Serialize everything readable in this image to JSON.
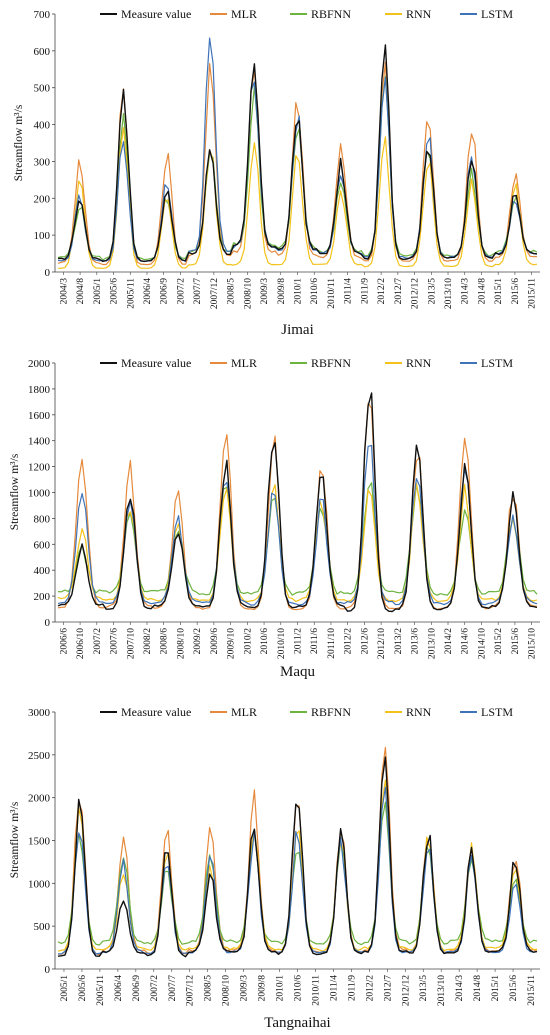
{
  "chart_data": [
    {
      "type": "line",
      "station": "Jimai",
      "ylabel": "Streamflow m³/s",
      "ylim": [
        0,
        700
      ],
      "yticks": [
        0,
        100,
        200,
        300,
        400,
        500,
        600,
        700
      ],
      "x_tick_labels": [
        "2004/3",
        "2004/8",
        "2005/1",
        "2005/6",
        "2005/11",
        "2006/4",
        "2006/9",
        "2007/2",
        "2007/7",
        "2007/12",
        "2008/5",
        "2008/10",
        "2009/3",
        "2009/8",
        "2010/1",
        "2010/6",
        "2010/11",
        "2011/4",
        "2011/9",
        "2012/2",
        "2012/7",
        "2012/12",
        "2013/5",
        "2013/10",
        "2014/3",
        "2014/8",
        "2015/1",
        "2015/6",
        "2015/11"
      ],
      "legend": [
        "Measure value",
        "MLR",
        "RBFNN",
        "RNN",
        "LSTM"
      ],
      "series": [
        {
          "name": "Measure value",
          "color": "#111111",
          "peaks": [
            200,
            510,
            230,
            340,
            560,
            430,
            290,
            600,
            360,
            310,
            210
          ],
          "base": [
            35,
            30,
            30,
            50,
            70,
            60,
            50,
            35,
            40,
            40,
            50,
            45
          ]
        },
        {
          "name": "MLR",
          "color": "#e58a3c",
          "peaks": [
            300,
            510,
            320,
            580,
            570,
            470,
            350,
            550,
            430,
            400,
            265
          ],
          "base": [
            25,
            20,
            20,
            45,
            55,
            45,
            40,
            30,
            30,
            30,
            40,
            35
          ]
        },
        {
          "name": "RBFNN",
          "color": "#6cb33f",
          "peaks": [
            180,
            440,
            200,
            330,
            480,
            400,
            260,
            510,
            330,
            270,
            200
          ],
          "base": [
            40,
            35,
            35,
            55,
            75,
            65,
            55,
            45,
            45,
            45,
            55,
            50
          ]
        },
        {
          "name": "RNN",
          "color": "#f3c21b",
          "peaks": [
            250,
            400,
            200,
            340,
            350,
            330,
            220,
            350,
            310,
            250,
            230
          ],
          "base": [
            10,
            10,
            10,
            20,
            20,
            20,
            20,
            15,
            15,
            15,
            20,
            15
          ]
        },
        {
          "name": "LSTM",
          "color": "#3f73b8",
          "peaks": [
            200,
            360,
            250,
            650,
            540,
            430,
            280,
            500,
            370,
            320,
            200
          ],
          "base": [
            30,
            30,
            30,
            55,
            70,
            60,
            50,
            40,
            40,
            40,
            50,
            45
          ]
        }
      ]
    },
    {
      "type": "line",
      "station": "Maqu",
      "ylabel": "Streamflow m³/s",
      "ylim": [
        0,
        2000
      ],
      "yticks": [
        0,
        200,
        400,
        600,
        800,
        1000,
        1200,
        1400,
        1600,
        1800,
        2000
      ],
      "x_tick_labels": [
        "2006/6",
        "2006/10",
        "2007/2",
        "2007/6",
        "2007/10",
        "2008/2",
        "2008/6",
        "2008/10",
        "2009/2",
        "2009/6",
        "2009/10",
        "2010/2",
        "2010/6",
        "2010/10",
        "2011/2",
        "2011/6",
        "2011/10",
        "2012/2",
        "2012/6",
        "2012/10",
        "2013/2",
        "2013/6",
        "2013/10",
        "2014/2",
        "2014/6",
        "2014/10",
        "2015/2",
        "2015/6",
        "2015/10"
      ],
      "legend": [
        "Measure value",
        "MLR",
        "RBFNN",
        "RNN",
        "LSTM"
      ],
      "series": [
        {
          "name": "Measure value",
          "color": "#111111",
          "peaks": [
            600,
            1000,
            700,
            1200,
            1430,
            1180,
            1810,
            1310,
            1180,
            950
          ],
          "base": [
            130,
            100,
            130,
            120,
            110,
            120,
            80,
            100,
            110,
            120
          ]
        },
        {
          "name": "MLR",
          "color": "#e58a3c",
          "peaks": [
            1300,
            1200,
            1030,
            1530,
            1400,
            1220,
            1820,
            1320,
            1420,
            1000
          ],
          "base": [
            110,
            120,
            110,
            100,
            100,
            100,
            110,
            100,
            110,
            120
          ]
        },
        {
          "name": "RBFNN",
          "color": "#6cb33f",
          "peaks": [
            560,
            850,
            700,
            1050,
            1000,
            900,
            1100,
            1080,
            900,
            820
          ],
          "base": [
            230,
            230,
            230,
            220,
            220,
            220,
            230,
            220,
            220,
            230
          ]
        },
        {
          "name": "RNN",
          "color": "#f3c21b",
          "peaks": [
            700,
            900,
            750,
            1000,
            1050,
            950,
            1080,
            1050,
            1000,
            800
          ],
          "base": [
            180,
            170,
            170,
            170,
            170,
            170,
            170,
            170,
            170,
            170
          ]
        },
        {
          "name": "LSTM",
          "color": "#3f73b8",
          "peaks": [
            1000,
            900,
            800,
            1150,
            1050,
            950,
            1430,
            1200,
            1150,
            800
          ],
          "base": [
            150,
            150,
            150,
            150,
            140,
            140,
            150,
            140,
            140,
            150
          ]
        }
      ]
    },
    {
      "type": "line",
      "station": "Tangnaihai",
      "ylabel": "Streamflow m³/s",
      "ylim": [
        0,
        3000
      ],
      "yticks": [
        0,
        500,
        1000,
        1500,
        2000,
        2500,
        3000
      ],
      "x_tick_labels": [
        "2005/1",
        "2005/6",
        "2005/11",
        "2006/4",
        "2006/9",
        "2007/2",
        "2007/7",
        "2007/12",
        "2008/5",
        "2008/10",
        "2009/3",
        "2009/8",
        "2010/1",
        "2010/6",
        "2010/11",
        "2011/4",
        "2011/9",
        "2012/2",
        "2012/7",
        "2012/12",
        "2013/5",
        "2013/10",
        "2014/3",
        "2014/8",
        "2015/1",
        "2015/6",
        "2015/11"
      ],
      "legend": [
        "Measure value",
        "MLR",
        "RBFNN",
        "RNN",
        "LSTM"
      ],
      "series": [
        {
          "name": "Measure value",
          "color": "#111111",
          "peaks": [
            1950,
            800,
            1400,
            1100,
            1700,
            2120,
            1560,
            2580,
            1580,
            1400,
            1300
          ],
          "base": [
            150,
            200,
            150,
            200,
            200,
            180,
            180,
            200,
            180,
            200,
            200
          ]
        },
        {
          "name": "MLR",
          "color": "#e58a3c",
          "peaks": [
            2100,
            1550,
            1580,
            1640,
            1990,
            1980,
            1620,
            2680,
            1600,
            1450,
            1350
          ],
          "base": [
            170,
            220,
            180,
            220,
            220,
            200,
            200,
            220,
            200,
            220,
            220
          ]
        },
        {
          "name": "RBFNN",
          "color": "#6cb33f",
          "peaks": [
            1600,
            1300,
            1200,
            1320,
            1600,
            1500,
            1400,
            2000,
            1450,
            1350,
            1100
          ],
          "base": [
            300,
            320,
            300,
            320,
            320,
            300,
            300,
            320,
            300,
            320,
            320
          ]
        },
        {
          "name": "RNN",
          "color": "#f3c21b",
          "peaks": [
            1800,
            1100,
            1350,
            1200,
            1700,
            1650,
            1500,
            2250,
            1500,
            1400,
            1200
          ],
          "base": [
            220,
            240,
            220,
            240,
            240,
            220,
            220,
            240,
            220,
            240,
            240
          ]
        },
        {
          "name": "LSTM",
          "color": "#3f73b8",
          "peaks": [
            1650,
            1280,
            1300,
            1300,
            1550,
            1600,
            1450,
            2150,
            1450,
            1300,
            1000
          ],
          "base": [
            180,
            200,
            180,
            200,
            200,
            190,
            190,
            200,
            190,
            200,
            200
          ]
        }
      ]
    }
  ]
}
